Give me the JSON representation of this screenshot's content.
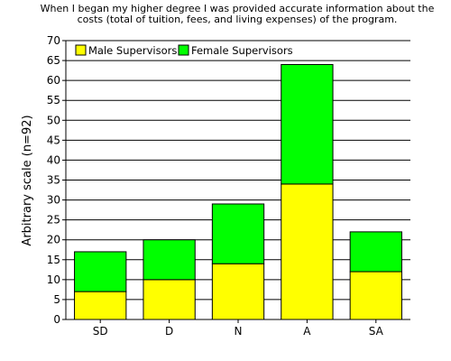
{
  "chart_data": {
    "type": "bar",
    "stacked": true,
    "title": [
      "When I began my higher degree I was provided accurate information about the",
      "costs (total of tuition, fees, and living expenses) of the program."
    ],
    "xlabel": "",
    "ylabel": "Arbitrary scale (n=92)",
    "categories": [
      "SD",
      "D",
      "N",
      "A",
      "SA"
    ],
    "series": [
      {
        "name": "Male Supervisors",
        "color": "#ffff00",
        "values": [
          7,
          10,
          14,
          34,
          12
        ]
      },
      {
        "name": "Female Supervisors",
        "color": "#00ff00",
        "values": [
          10,
          10,
          15,
          30,
          10
        ]
      }
    ],
    "ylim": [
      0,
      70
    ],
    "yticks": [
      0,
      5,
      10,
      15,
      20,
      25,
      30,
      35,
      40,
      45,
      50,
      55,
      60,
      65,
      70
    ],
    "grid": true,
    "legend": "top-left"
  }
}
